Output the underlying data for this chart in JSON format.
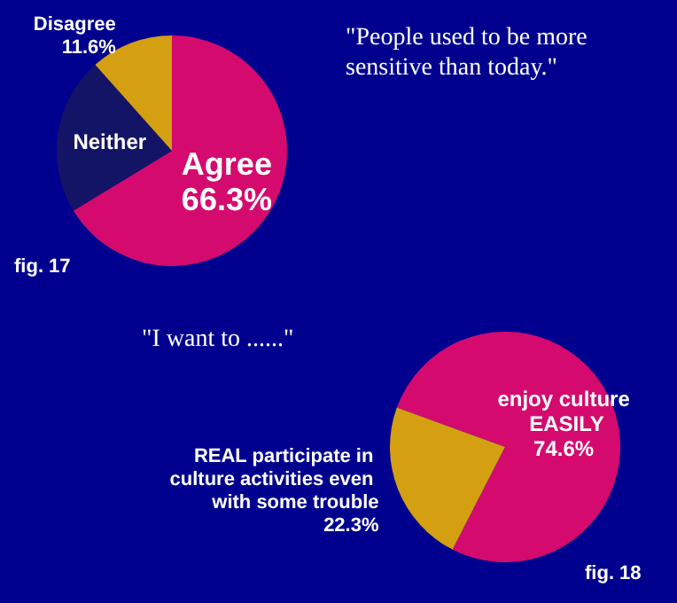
{
  "chart_data": [
    {
      "type": "pie",
      "title": "\"People used to be more sensitive than today.\"",
      "categories": [
        "Agree",
        "Neither",
        "Disagree"
      ],
      "values": [
        66.3,
        22.1,
        11.6
      ],
      "colors": [
        "#d40a6e",
        "#141466",
        "#d4a012"
      ],
      "value_labels": [
        "66.3%",
        null,
        "11.6%"
      ],
      "legend": false,
      "annotations": [
        "fig. 17"
      ]
    },
    {
      "type": "pie",
      "title": "\"I want to ......\"",
      "categories": [
        "enjoy culture EASILY",
        "REAL participate in culture activities even with some trouble"
      ],
      "values": [
        74.6,
        22.3
      ],
      "colors": [
        "#d40a6e",
        "#d4a012"
      ],
      "value_labels": [
        "74.6%",
        "22.3%"
      ],
      "legend": false,
      "annotations": [
        "fig. 18"
      ]
    }
  ]
}
